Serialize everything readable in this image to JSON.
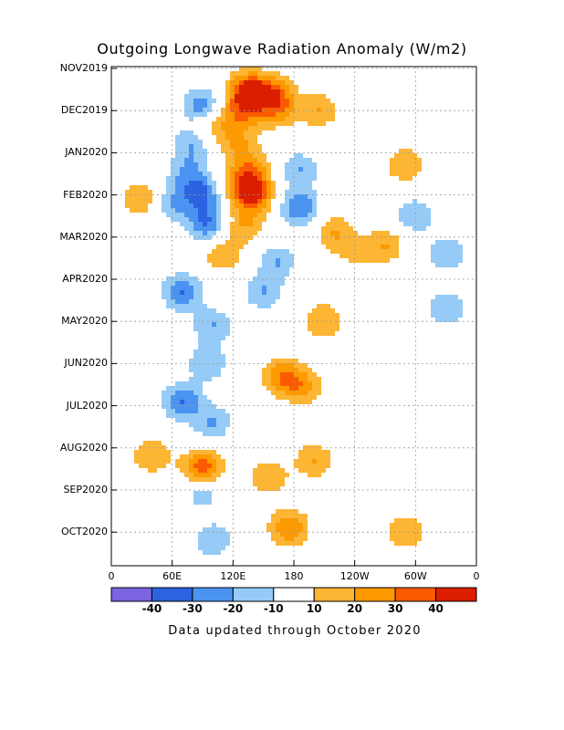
{
  "chart_data": {
    "type": "heatmap",
    "title": "Outgoing Longwave Radiation Anomaly (W/m2)",
    "footer": "Data updated through October 2020",
    "x_ticks": [
      "0",
      "60E",
      "120E",
      "180",
      "120W",
      "60W",
      "0"
    ],
    "y_ticks": [
      "NOV2019",
      "DEC2019",
      "JAN2020",
      "FEB2020",
      "MAR2020",
      "APR2020",
      "MAY2020",
      "JUN2020",
      "JUL2020",
      "AUG2020",
      "SEP2020",
      "OCT2020"
    ],
    "colorbar": {
      "labels": [
        "-40",
        "-30",
        "-20",
        "-10",
        "10",
        "20",
        "30",
        "40"
      ],
      "colors": [
        "#7b64e0",
        "#2c63e0",
        "#4b93f0",
        "#95cbf6",
        "#ffffff",
        "#fdb534",
        "#fd9a00",
        "#fb5b00",
        "#dc1e00"
      ]
    },
    "anomalies": [
      {
        "lon": 90,
        "t": 0.9,
        "v": -30
      },
      {
        "lon": 100,
        "t": 1.3,
        "v": 20
      },
      {
        "lon": 135,
        "t": 0.5,
        "v": 40
      },
      {
        "lon": 130,
        "t": 1.0,
        "v": 30
      },
      {
        "lon": 160,
        "t": 0.6,
        "v": 30
      },
      {
        "lon": 165,
        "t": 1.0,
        "v": 20
      },
      {
        "lon": 205,
        "t": 1.0,
        "v": 20
      },
      {
        "lon": 125,
        "t": 1.8,
        "v": 20
      },
      {
        "lon": 80,
        "t": 1.8,
        "v": -20
      },
      {
        "lon": 75,
        "t": 2.5,
        "v": -20
      },
      {
        "lon": 140,
        "t": 2.4,
        "v": 20
      },
      {
        "lon": 185,
        "t": 2.4,
        "v": -20
      },
      {
        "lon": 140,
        "t": 3.0,
        "v": 40
      },
      {
        "lon": 125,
        "t": 2.7,
        "v": 20
      },
      {
        "lon": 90,
        "t": 3.0,
        "v": -30
      },
      {
        "lon": 185,
        "t": 3.3,
        "v": -30
      },
      {
        "lon": 60,
        "t": 3.2,
        "v": -20
      },
      {
        "lon": 30,
        "t": 3.1,
        "v": 20
      },
      {
        "lon": 95,
        "t": 3.7,
        "v": -30
      },
      {
        "lon": 130,
        "t": 3.7,
        "v": 20
      },
      {
        "lon": 220,
        "t": 3.9,
        "v": 20
      },
      {
        "lon": 300,
        "t": 3.5,
        "v": -20
      },
      {
        "lon": 290,
        "t": 2.3,
        "v": 20
      },
      {
        "lon": 240,
        "t": 4.4,
        "v": 10
      },
      {
        "lon": 270,
        "t": 4.2,
        "v": 20
      },
      {
        "lon": 330,
        "t": 4.4,
        "v": -20
      },
      {
        "lon": 165,
        "t": 4.6,
        "v": -20
      },
      {
        "lon": 110,
        "t": 4.4,
        "v": 20
      },
      {
        "lon": 70,
        "t": 5.3,
        "v": -30
      },
      {
        "lon": 200,
        "t": 5.0,
        "v": 10
      },
      {
        "lon": 150,
        "t": 5.3,
        "v": -20
      },
      {
        "lon": 100,
        "t": 6.1,
        "v": -20
      },
      {
        "lon": 210,
        "t": 6.0,
        "v": 20
      },
      {
        "lon": 330,
        "t": 5.7,
        "v": -20
      },
      {
        "lon": 170,
        "t": 7.3,
        "v": 30
      },
      {
        "lon": 95,
        "t": 7.0,
        "v": -20
      },
      {
        "lon": 70,
        "t": 7.9,
        "v": -30
      },
      {
        "lon": 190,
        "t": 7.6,
        "v": 20
      },
      {
        "lon": 100,
        "t": 8.4,
        "v": -20
      },
      {
        "lon": 40,
        "t": 9.2,
        "v": 20
      },
      {
        "lon": 90,
        "t": 9.5,
        "v": 40
      },
      {
        "lon": 155,
        "t": 9.7,
        "v": 20
      },
      {
        "lon": 200,
        "t": 9.3,
        "v": 20
      },
      {
        "lon": 90,
        "t": 10.0,
        "v": -20
      },
      {
        "lon": 175,
        "t": 10.9,
        "v": 30
      },
      {
        "lon": 100,
        "t": 11.2,
        "v": -20
      },
      {
        "lon": 290,
        "t": 11.0,
        "v": 20
      },
      {
        "lon": 240,
        "t": 10.5,
        "v": 10
      }
    ]
  }
}
